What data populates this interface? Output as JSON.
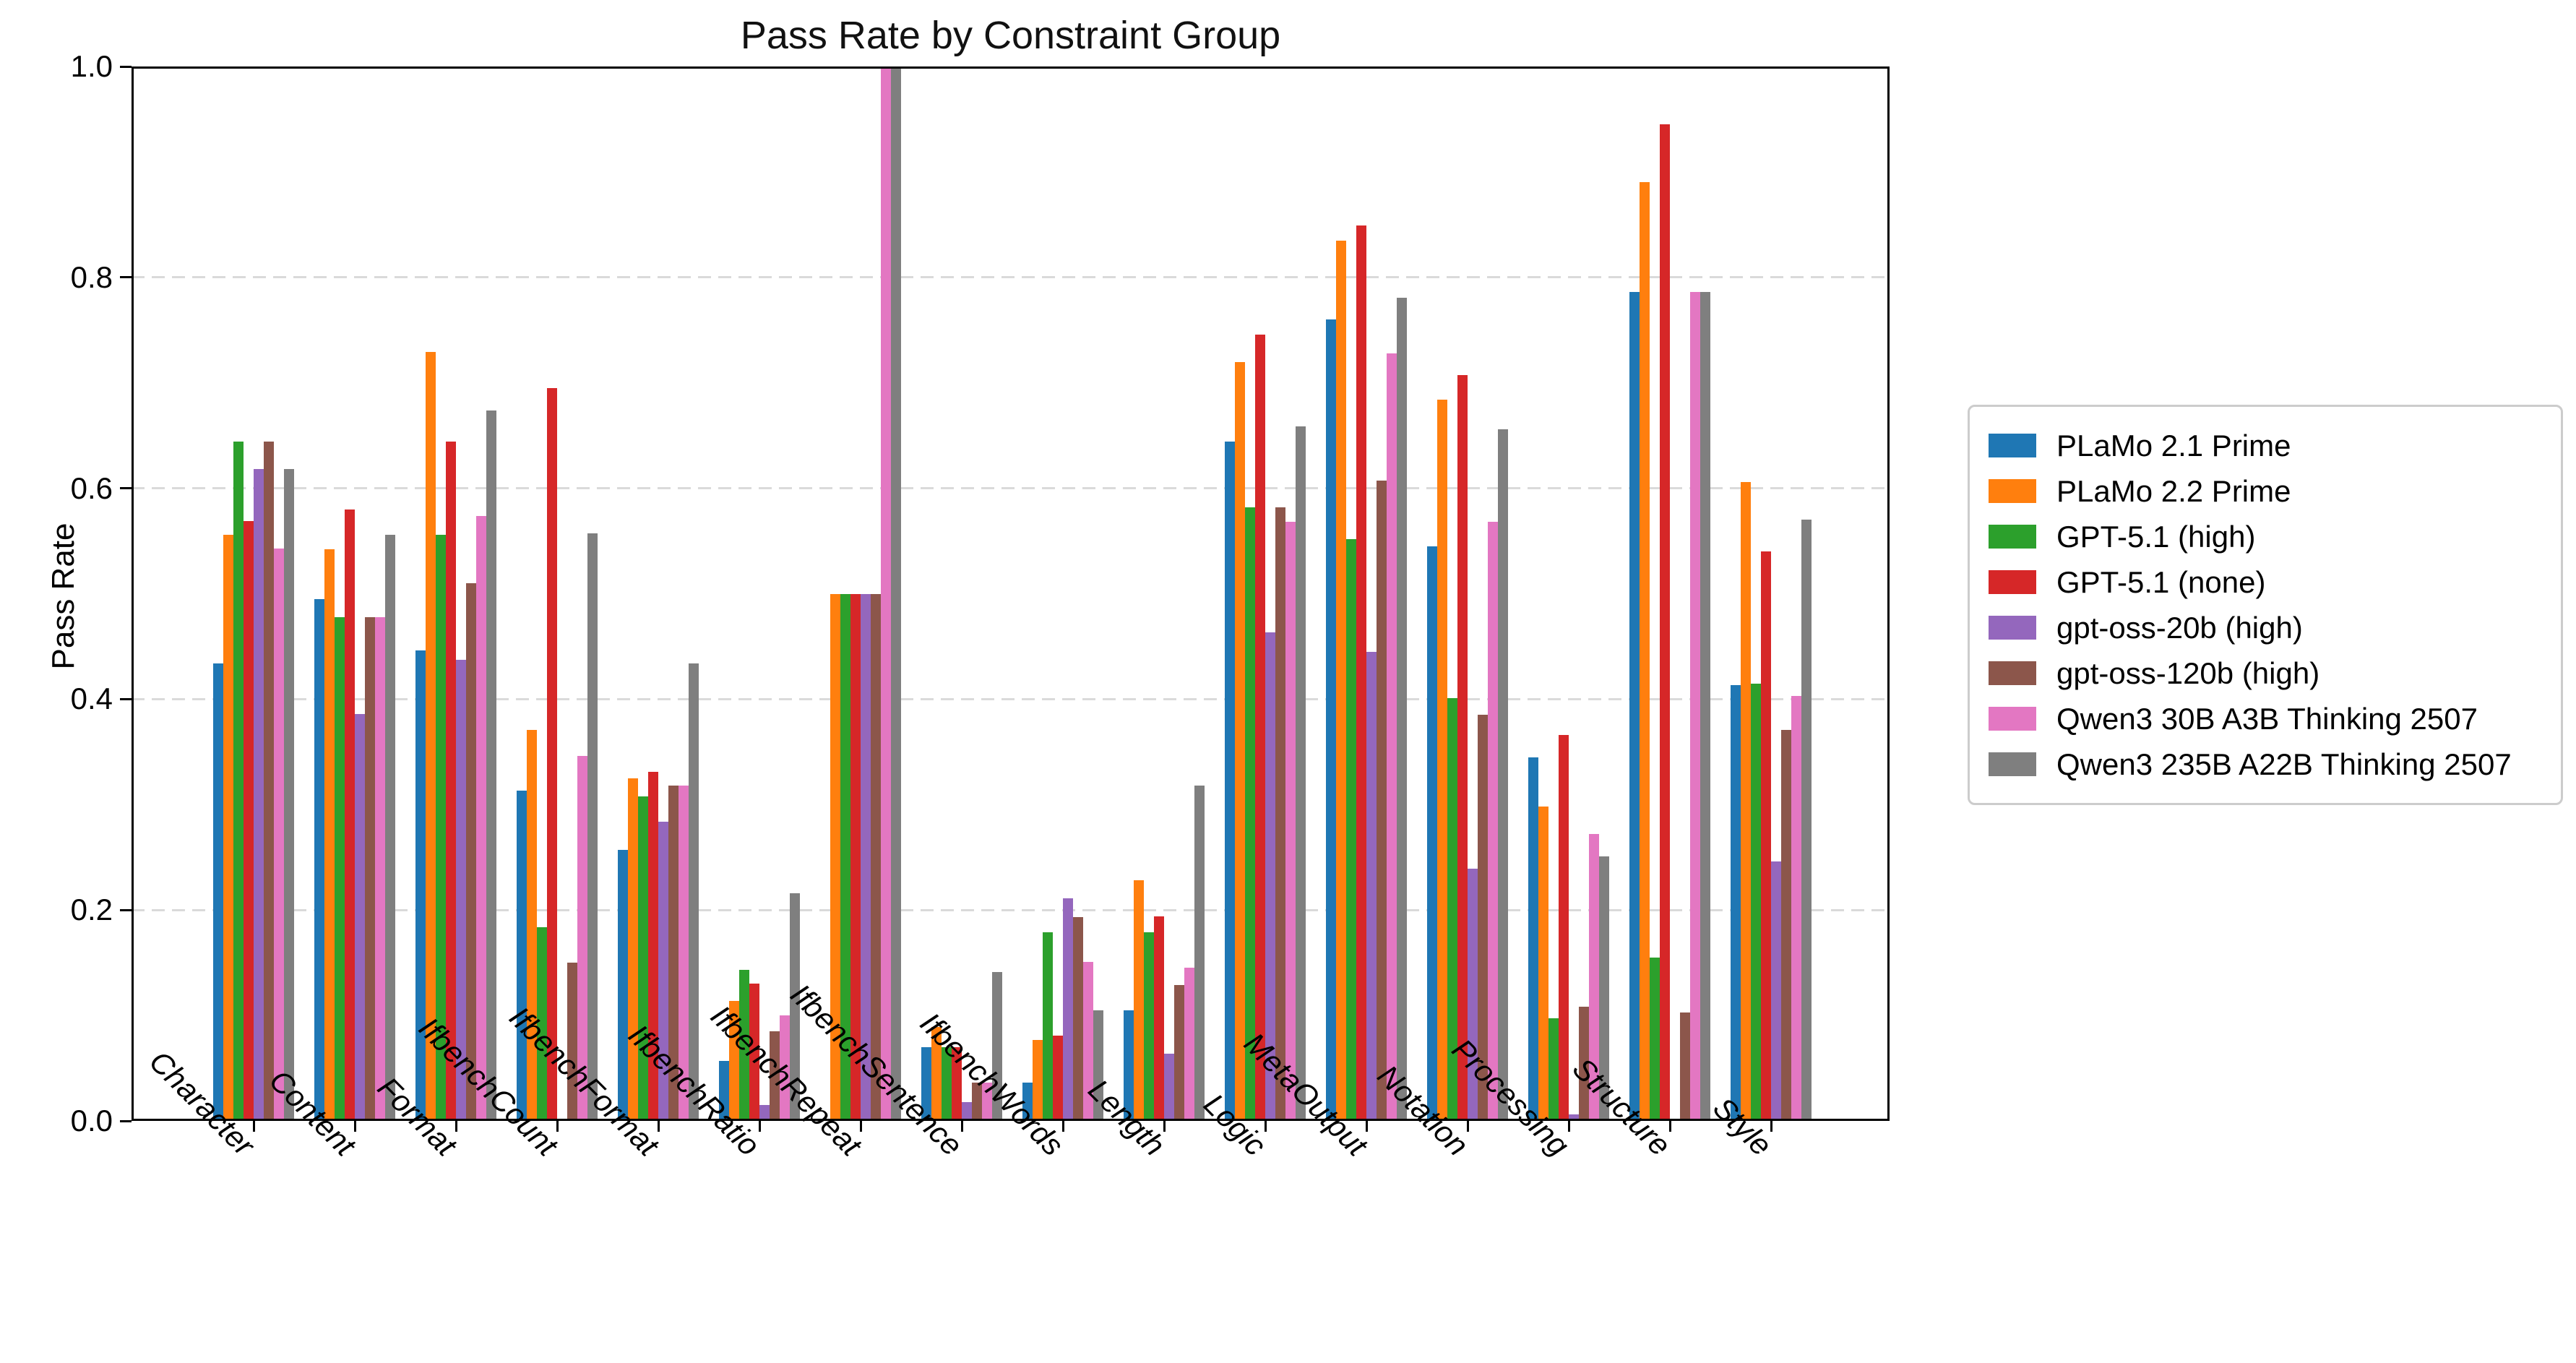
{
  "chart_data": {
    "type": "bar",
    "title": "Pass Rate by Constraint Group",
    "ylabel": "Pass Rate",
    "xlabel": "",
    "ylim": [
      0.0,
      1.0
    ],
    "yticks": [
      "0.0",
      "0.2",
      "0.4",
      "0.6",
      "0.8",
      "1.0"
    ],
    "grid": "horizontal-dashed",
    "legend_position": "outside-center-right",
    "categories": [
      "Character",
      "Content",
      "Format",
      "IfbenchCount",
      "IfbenchFormat",
      "IfbenchRatio",
      "IfbenchRepeat",
      "IfbenchSentence",
      "IfbenchWords",
      "Length",
      "Logic",
      "MetaOutput",
      "Notation",
      "Processing",
      "Structure",
      "Style"
    ],
    "series": [
      {
        "name": "PLaMo 2.1 Prime",
        "color": "#1f77b4",
        "values": [
          0.434,
          0.495,
          0.446,
          0.313,
          0.257,
          0.057,
          0.0,
          0.07,
          0.036,
          0.105,
          0.644,
          0.76,
          0.545,
          0.345,
          0.786,
          0.413
        ]
      },
      {
        "name": "PLaMo 2.2 Prime",
        "color": "#ff7f0e",
        "values": [
          0.556,
          0.542,
          0.729,
          0.371,
          0.325,
          0.114,
          0.5,
          0.089,
          0.077,
          0.228,
          0.72,
          0.835,
          0.684,
          0.298,
          0.89,
          0.606
        ]
      },
      {
        "name": "GPT-5.1 (high)",
        "color": "#2ca02c",
        "values": [
          0.644,
          0.478,
          0.556,
          0.184,
          0.308,
          0.143,
          0.5,
          0.07,
          0.179,
          0.179,
          0.582,
          0.552,
          0.401,
          0.097,
          0.155,
          0.415
        ]
      },
      {
        "name": "GPT-5.1 (none)",
        "color": "#d62728",
        "values": [
          0.569,
          0.58,
          0.644,
          0.695,
          0.331,
          0.13,
          0.5,
          0.07,
          0.081,
          0.194,
          0.746,
          0.849,
          0.707,
          0.366,
          0.945,
          0.54
        ]
      },
      {
        "name": "gpt-oss-20b (high)",
        "color": "#9467bd",
        "values": [
          0.618,
          0.386,
          0.437,
          0.0,
          0.284,
          0.015,
          0.5,
          0.018,
          0.211,
          0.064,
          0.463,
          0.445,
          0.239,
          0.006,
          0.0,
          0.246
        ]
      },
      {
        "name": "gpt-oss-120b (high)",
        "color": "#8c564b",
        "values": [
          0.644,
          0.478,
          0.51,
          0.15,
          0.318,
          0.085,
          0.5,
          0.036,
          0.193,
          0.129,
          0.582,
          0.607,
          0.385,
          0.108,
          0.103,
          0.371
        ]
      },
      {
        "name": "Qwen3 30B A3B Thinking 2507",
        "color": "#e377c2",
        "values": [
          0.543,
          0.478,
          0.574,
          0.346,
          0.318,
          0.1,
          1.0,
          0.036,
          0.151,
          0.145,
          0.568,
          0.728,
          0.568,
          0.272,
          0.786,
          0.403
        ]
      },
      {
        "name": "Qwen3 235B A22B Thinking 2507",
        "color": "#7f7f7f",
        "values": [
          0.618,
          0.556,
          0.674,
          0.557,
          0.434,
          0.216,
          1.0,
          0.141,
          0.105,
          0.318,
          0.659,
          0.781,
          0.656,
          0.251,
          0.786,
          0.57
        ]
      }
    ]
  }
}
